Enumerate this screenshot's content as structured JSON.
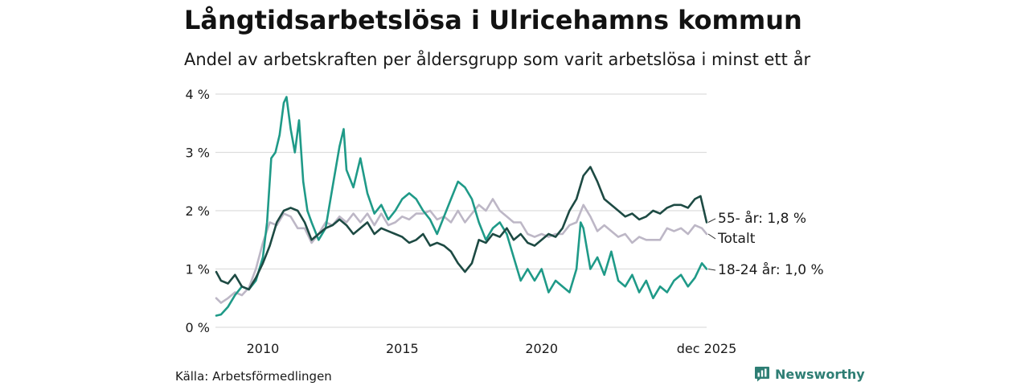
{
  "title": "Långtidsarbetslösa i Ulricehamns kommun",
  "subtitle": "Andel av arbetskraften per åldersgrupp som varit arbetslösa i minst ett år",
  "source": "Källa: Arbetsförmedlingen",
  "brand": "Newsworthy",
  "colors": {
    "teal": "#1f9a88",
    "dark": "#1d4a43",
    "grey": "#bdb7c6",
    "grid": "#dddddd",
    "brand": "#2e7e74"
  },
  "chart_data": {
    "type": "line",
    "title": "Långtidsarbetslösa i Ulricehamns kommun",
    "xlabel": "",
    "ylabel": "",
    "x_range": [
      2008.3,
      2025.92
    ],
    "ylim": [
      0,
      4
    ],
    "y_ticks": [
      {
        "value": 0,
        "label": "0 %"
      },
      {
        "value": 1,
        "label": "1 %"
      },
      {
        "value": 2,
        "label": "2 %"
      },
      {
        "value": 3,
        "label": "3 %"
      },
      {
        "value": 4,
        "label": "4 %"
      }
    ],
    "x_ticks": [
      {
        "value": 2010,
        "label": "2010"
      },
      {
        "value": 2015,
        "label": "2015"
      },
      {
        "value": 2020,
        "label": "2020"
      },
      {
        "value": 2025.92,
        "label": "dec 2025"
      }
    ],
    "series": [
      {
        "name": "Totalt",
        "label": "Totalt",
        "color_key": "grey",
        "x": [
          2008.33,
          2008.5,
          2008.75,
          2009.0,
          2009.25,
          2009.5,
          2009.75,
          2010.0,
          2010.25,
          2010.5,
          2010.75,
          2011.0,
          2011.25,
          2011.5,
          2011.75,
          2012.0,
          2012.25,
          2012.5,
          2012.75,
          2013.0,
          2013.25,
          2013.5,
          2013.75,
          2014.0,
          2014.25,
          2014.5,
          2014.75,
          2015.0,
          2015.25,
          2015.5,
          2015.75,
          2016.0,
          2016.25,
          2016.5,
          2016.75,
          2017.0,
          2017.25,
          2017.5,
          2017.75,
          2018.0,
          2018.25,
          2018.5,
          2018.75,
          2019.0,
          2019.25,
          2019.5,
          2019.75,
          2020.0,
          2020.25,
          2020.5,
          2020.75,
          2021.0,
          2021.25,
          2021.5,
          2021.75,
          2022.0,
          2022.25,
          2022.5,
          2022.75,
          2023.0,
          2023.25,
          2023.5,
          2023.75,
          2024.0,
          2024.25,
          2024.5,
          2024.75,
          2025.0,
          2025.25,
          2025.5,
          2025.75,
          2025.92
        ],
        "values": [
          0.5,
          0.42,
          0.5,
          0.6,
          0.55,
          0.68,
          1.0,
          1.45,
          1.8,
          1.75,
          1.95,
          1.9,
          1.7,
          1.7,
          1.45,
          1.6,
          1.8,
          1.75,
          1.9,
          1.8,
          1.95,
          1.8,
          1.95,
          1.75,
          1.95,
          1.75,
          1.8,
          1.9,
          1.85,
          1.95,
          1.95,
          2.0,
          1.85,
          1.9,
          1.8,
          2.0,
          1.8,
          1.95,
          2.1,
          2.0,
          2.2,
          2.0,
          1.9,
          1.8,
          1.8,
          1.6,
          1.55,
          1.6,
          1.55,
          1.6,
          1.6,
          1.75,
          1.8,
          2.1,
          1.9,
          1.65,
          1.75,
          1.65,
          1.55,
          1.6,
          1.45,
          1.55,
          1.5,
          1.5,
          1.5,
          1.7,
          1.65,
          1.7,
          1.6,
          1.75,
          1.7,
          1.6
        ]
      },
      {
        "name": "18-24 år",
        "label": "18-24 år: 1,0 %",
        "color_key": "teal",
        "x": [
          2008.33,
          2008.5,
          2008.75,
          2009.0,
          2009.25,
          2009.5,
          2009.75,
          2010.0,
          2010.15,
          2010.3,
          2010.45,
          2010.6,
          2010.75,
          2010.85,
          2011.0,
          2011.15,
          2011.3,
          2011.45,
          2011.6,
          2011.75,
          2012.0,
          2012.25,
          2012.5,
          2012.75,
          2012.9,
          2013.0,
          2013.25,
          2013.5,
          2013.75,
          2014.0,
          2014.25,
          2014.5,
          2014.75,
          2015.0,
          2015.25,
          2015.5,
          2015.75,
          2016.0,
          2016.25,
          2016.5,
          2016.75,
          2017.0,
          2017.25,
          2017.5,
          2017.75,
          2018.0,
          2018.25,
          2018.5,
          2018.75,
          2019.0,
          2019.25,
          2019.5,
          2019.75,
          2020.0,
          2020.25,
          2020.5,
          2020.75,
          2021.0,
          2021.25,
          2021.4,
          2021.5,
          2021.75,
          2022.0,
          2022.25,
          2022.5,
          2022.75,
          2023.0,
          2023.25,
          2023.5,
          2023.75,
          2024.0,
          2024.25,
          2024.5,
          2024.75,
          2025.0,
          2025.25,
          2025.5,
          2025.75,
          2025.92
        ],
        "values": [
          0.2,
          0.22,
          0.35,
          0.55,
          0.7,
          0.65,
          0.8,
          1.2,
          1.8,
          2.9,
          3.0,
          3.3,
          3.85,
          3.95,
          3.4,
          3.0,
          3.55,
          2.5,
          2.0,
          1.8,
          1.5,
          1.7,
          2.4,
          3.1,
          3.4,
          2.7,
          2.4,
          2.9,
          2.3,
          1.95,
          2.1,
          1.85,
          2.0,
          2.2,
          2.3,
          2.2,
          2.0,
          1.85,
          1.6,
          1.9,
          2.2,
          2.5,
          2.4,
          2.2,
          1.8,
          1.5,
          1.7,
          1.8,
          1.6,
          1.2,
          0.8,
          1.0,
          0.8,
          1.0,
          0.6,
          0.8,
          0.7,
          0.6,
          1.0,
          1.8,
          1.7,
          1.0,
          1.2,
          0.9,
          1.3,
          0.8,
          0.7,
          0.9,
          0.6,
          0.8,
          0.5,
          0.7,
          0.6,
          0.8,
          0.9,
          0.7,
          0.85,
          1.1,
          1.0
        ]
      },
      {
        "name": "55- år",
        "label": "55- år: 1,8 %",
        "color_key": "dark",
        "x": [
          2008.33,
          2008.5,
          2008.75,
          2009.0,
          2009.25,
          2009.5,
          2009.75,
          2010.0,
          2010.25,
          2010.5,
          2010.75,
          2011.0,
          2011.25,
          2011.5,
          2011.75,
          2012.0,
          2012.25,
          2012.5,
          2012.75,
          2013.0,
          2013.25,
          2013.5,
          2013.75,
          2014.0,
          2014.25,
          2014.5,
          2014.75,
          2015.0,
          2015.25,
          2015.5,
          2015.75,
          2016.0,
          2016.25,
          2016.5,
          2016.75,
          2017.0,
          2017.25,
          2017.5,
          2017.75,
          2018.0,
          2018.25,
          2018.5,
          2018.75,
          2019.0,
          2019.25,
          2019.5,
          2019.75,
          2020.0,
          2020.25,
          2020.5,
          2020.75,
          2021.0,
          2021.25,
          2021.5,
          2021.75,
          2022.0,
          2022.25,
          2022.5,
          2022.75,
          2023.0,
          2023.25,
          2023.5,
          2023.75,
          2024.0,
          2024.25,
          2024.5,
          2024.75,
          2025.0,
          2025.25,
          2025.5,
          2025.7,
          2025.92
        ],
        "values": [
          0.95,
          0.8,
          0.75,
          0.9,
          0.7,
          0.65,
          0.85,
          1.1,
          1.4,
          1.8,
          2.0,
          2.05,
          2.0,
          1.8,
          1.5,
          1.6,
          1.7,
          1.75,
          1.85,
          1.75,
          1.6,
          1.7,
          1.8,
          1.6,
          1.7,
          1.65,
          1.6,
          1.55,
          1.45,
          1.5,
          1.6,
          1.4,
          1.45,
          1.4,
          1.3,
          1.1,
          0.95,
          1.1,
          1.5,
          1.45,
          1.6,
          1.55,
          1.7,
          1.5,
          1.6,
          1.45,
          1.4,
          1.5,
          1.6,
          1.55,
          1.7,
          2.0,
          2.2,
          2.6,
          2.75,
          2.5,
          2.2,
          2.1,
          2.0,
          1.9,
          1.95,
          1.85,
          1.9,
          2.0,
          1.95,
          2.05,
          2.1,
          2.1,
          2.05,
          2.2,
          2.25,
          1.8
        ]
      }
    ]
  }
}
